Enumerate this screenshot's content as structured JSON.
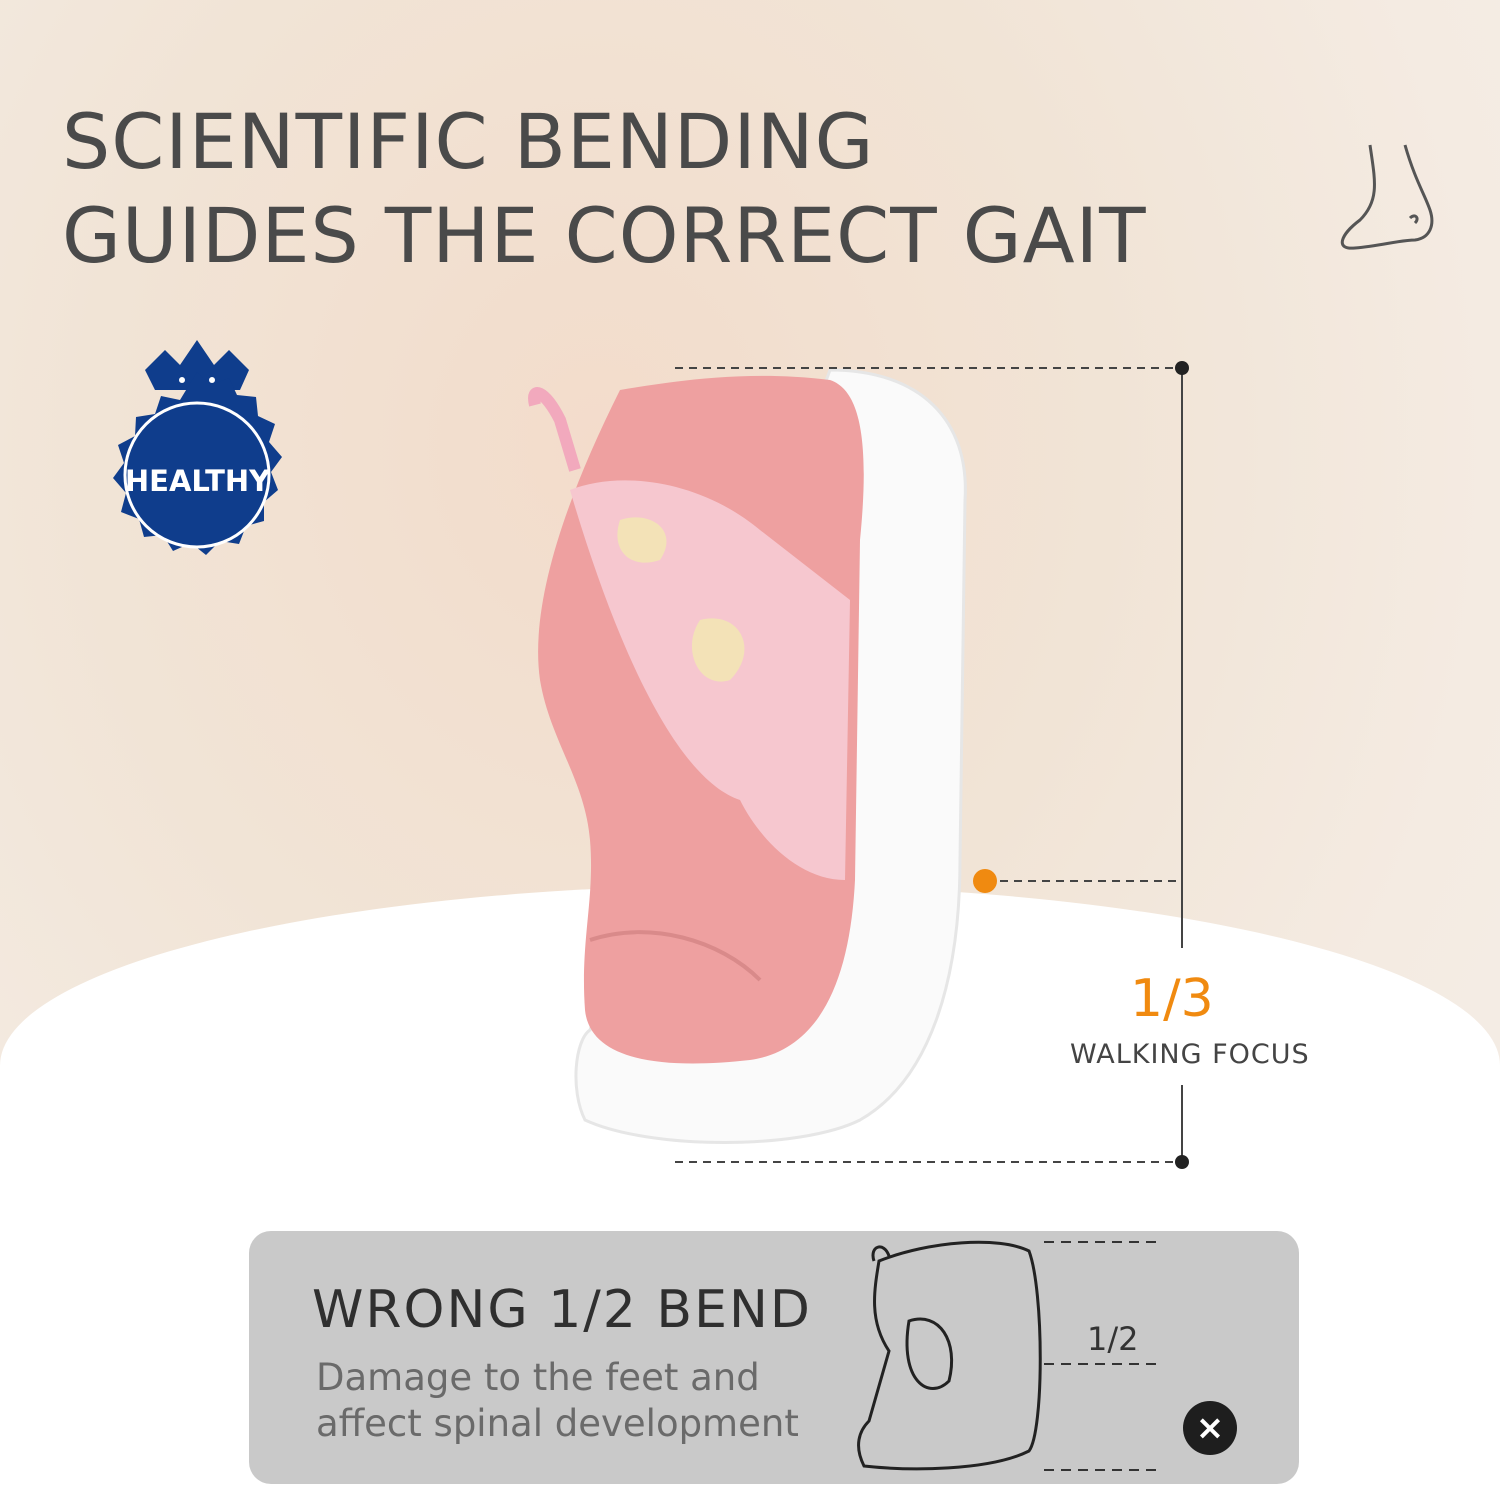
{
  "headline": {
    "line1": "SCIENTIFIC BENDING",
    "line2": "GUIDES THE CORRECT GAIT"
  },
  "badge": {
    "label": "HEALTHY",
    "color": "#0f3d8c"
  },
  "measure": {
    "fraction": "1/3",
    "label": "WALKING FOCUS",
    "accent": "#f08a10"
  },
  "wrong_panel": {
    "title": "WRONG 1/2 BEND",
    "desc_line1": "Damage to the feet and",
    "desc_line2": "affect spinal development",
    "fraction": "1/2",
    "x_icon": "×"
  }
}
